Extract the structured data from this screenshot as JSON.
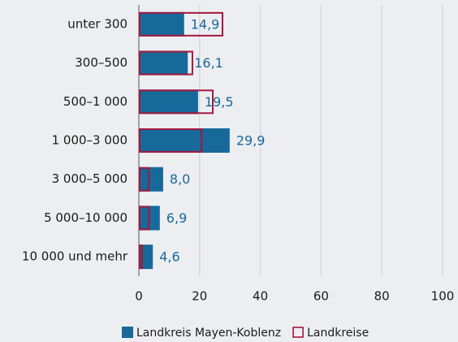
{
  "chart_data": {
    "type": "bar",
    "orientation": "horizontal",
    "categories": [
      "unter 300",
      "300–500",
      "500–1 000",
      "1 000–3 000",
      "3 000–5 000",
      "5 000–10 000",
      "10 000 und mehr"
    ],
    "series": [
      {
        "name": "Landkreis Mayen-Koblenz",
        "color": "#17699a",
        "style": "filled",
        "values": [
          14.9,
          16.1,
          19.5,
          29.9,
          8.0,
          6.9,
          4.6
        ],
        "value_labels": [
          "14,9",
          "16,1",
          "19,5",
          "29,9",
          "8,0",
          "6,9",
          "4,6"
        ]
      },
      {
        "name": "Landkreise",
        "color": "#a5173c",
        "style": "outline",
        "values": [
          27.8,
          17.9,
          24.6,
          20.9,
          3.5,
          3.5,
          1.3
        ]
      }
    ],
    "xlim": [
      0,
      100
    ],
    "xticks": [
      0,
      20,
      40,
      60,
      80,
      100
    ],
    "grid": true
  }
}
